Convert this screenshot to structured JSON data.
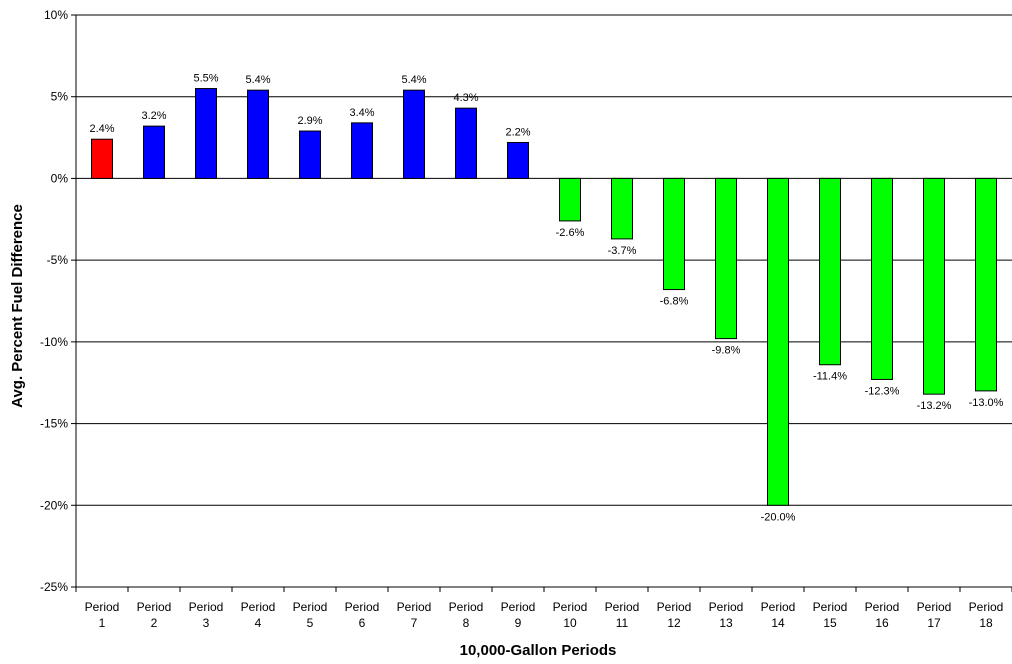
{
  "chart_data": {
    "type": "bar",
    "xlabel": "10,000-Gallon Periods",
    "ylabel": "Avg. Percent Fuel Difference",
    "ylim": [
      -25,
      10
    ],
    "ytick_step": 5,
    "ytick_labels": [
      "10%",
      "5%",
      "0%",
      "-5%",
      "-10%",
      "-15%",
      "-20%",
      "-25%"
    ],
    "grid": "horizontal",
    "legend": "none",
    "categories": [
      [
        "Period",
        "1"
      ],
      [
        "Period",
        "2"
      ],
      [
        "Period",
        "3"
      ],
      [
        "Period",
        "4"
      ],
      [
        "Period",
        "5"
      ],
      [
        "Period",
        "6"
      ],
      [
        "Period",
        "7"
      ],
      [
        "Period",
        "8"
      ],
      [
        "Period",
        "9"
      ],
      [
        "Period",
        "10"
      ],
      [
        "Period",
        "11"
      ],
      [
        "Period",
        "12"
      ],
      [
        "Period",
        "13"
      ],
      [
        "Period",
        "14"
      ],
      [
        "Period",
        "15"
      ],
      [
        "Period",
        "16"
      ],
      [
        "Period",
        "17"
      ],
      [
        "Period",
        "18"
      ]
    ],
    "values": [
      2.4,
      3.2,
      5.5,
      5.4,
      2.9,
      3.4,
      5.4,
      4.3,
      2.2,
      -2.6,
      -3.7,
      -6.8,
      -9.8,
      -20.0,
      -11.4,
      -12.3,
      -13.2,
      -13.0
    ],
    "data_labels": [
      "2.4%",
      "3.2%",
      "5.5%",
      "5.4%",
      "2.9%",
      "3.4%",
      "5.4%",
      "4.3%",
      "2.2%",
      "-2.6%",
      "-3.7%",
      "-6.8%",
      "-9.8%",
      "-20.0%",
      "-11.4%",
      "-12.3%",
      "-13.2%",
      "-13.0%"
    ],
    "colors": [
      "#ff0000",
      "#0000ff",
      "#0000ff",
      "#0000ff",
      "#0000ff",
      "#0000ff",
      "#0000ff",
      "#0000ff",
      "#0000ff",
      "#00ff00",
      "#00ff00",
      "#00ff00",
      "#00ff00",
      "#00ff00",
      "#00ff00",
      "#00ff00",
      "#00ff00",
      "#00ff00"
    ]
  }
}
